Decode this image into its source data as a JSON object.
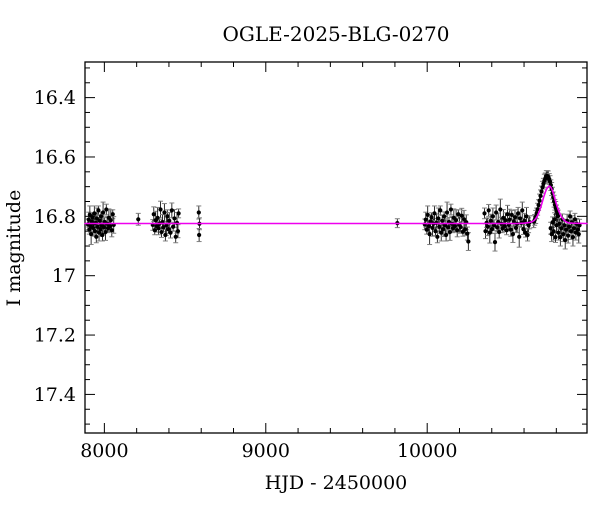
{
  "chart_data": {
    "type": "scatter",
    "title": "OGLE-2025-BLG-0270",
    "xlabel": "HJD - 2450000",
    "ylabel": "I magnitude",
    "x_range": [
      7880,
      10990
    ],
    "y_range_mag": [
      16.28,
      17.53
    ],
    "y_axis_inverted_magnitude": true,
    "grid": false,
    "legend": "none",
    "baseline_mag": 16.824,
    "peak": {
      "hjd": 10758,
      "mag": 16.7
    },
    "x_ticks": {
      "major": [
        8000,
        9000,
        10000
      ],
      "major_labels": [
        "8000",
        "9000",
        "10000"
      ],
      "minor": [
        8200,
        8400,
        8600,
        8800,
        9200,
        9400,
        9600,
        9800,
        10200,
        10400,
        10600,
        10800
      ]
    },
    "y_ticks": {
      "major": [
        16.4,
        16.6,
        16.8,
        17.0,
        17.2,
        17.4
      ],
      "major_labels": [
        "16.4",
        "16.6",
        "16.8",
        "17",
        "17.2",
        "17.4"
      ],
      "minor": [
        16.3,
        16.35,
        16.45,
        16.5,
        16.55,
        16.65,
        16.7,
        16.75,
        16.85,
        16.9,
        16.95,
        17.05,
        17.1,
        17.15,
        17.25,
        17.3,
        17.35,
        17.45,
        17.5
      ]
    },
    "colors": {
      "frame": "#000000",
      "points": "#000000",
      "error_bars": "#1a1a1a",
      "error_caps": "#808080",
      "model_line": "#ee00ee",
      "background": "#ffffff"
    },
    "model_curve": [
      [
        7880,
        16.824
      ],
      [
        9000,
        16.824
      ],
      [
        10000,
        16.824
      ],
      [
        10560,
        16.824
      ],
      [
        10600,
        16.823
      ],
      [
        10630,
        16.821
      ],
      [
        10650,
        16.818
      ],
      [
        10662,
        16.814
      ],
      [
        10672,
        16.808
      ],
      [
        10682,
        16.799
      ],
      [
        10692,
        16.787
      ],
      [
        10702,
        16.772
      ],
      [
        10712,
        16.754
      ],
      [
        10722,
        16.735
      ],
      [
        10732,
        16.718
      ],
      [
        10740,
        16.708
      ],
      [
        10747,
        16.702
      ],
      [
        10753,
        16.699
      ],
      [
        10758,
        16.698
      ],
      [
        10763,
        16.7
      ],
      [
        10769,
        16.705
      ],
      [
        10776,
        16.714
      ],
      [
        10784,
        16.727
      ],
      [
        10792,
        16.742
      ],
      [
        10800,
        16.757
      ],
      [
        10808,
        16.771
      ],
      [
        10816,
        16.783
      ],
      [
        10824,
        16.793
      ],
      [
        10832,
        16.802
      ],
      [
        10840,
        16.808
      ],
      [
        10848,
        16.813
      ],
      [
        10856,
        16.817
      ],
      [
        10866,
        16.82
      ],
      [
        10878,
        16.822
      ],
      [
        10900,
        16.823
      ],
      [
        10990,
        16.824
      ]
    ],
    "points": [
      [
        7898,
        16.827,
        0.018
      ],
      [
        7903,
        16.811,
        0.025
      ],
      [
        7907,
        16.845,
        0.015
      ],
      [
        7910,
        16.795,
        0.03
      ],
      [
        7914,
        16.833,
        0.02
      ],
      [
        7918,
        16.86,
        0.035
      ],
      [
        7922,
        16.817,
        0.022
      ],
      [
        7926,
        16.803,
        0.015
      ],
      [
        7930,
        16.839,
        0.028
      ],
      [
        7934,
        16.825,
        0.018
      ],
      [
        7938,
        16.79,
        0.025
      ],
      [
        7942,
        16.85,
        0.015
      ],
      [
        7946,
        16.822,
        0.03
      ],
      [
        7950,
        16.869,
        0.02
      ],
      [
        7954,
        16.807,
        0.035
      ],
      [
        7958,
        16.835,
        0.022
      ],
      [
        7963,
        16.78,
        0.015
      ],
      [
        7967,
        16.855,
        0.028
      ],
      [
        7971,
        16.815,
        0.018
      ],
      [
        7975,
        16.843,
        0.025
      ],
      [
        7979,
        16.8,
        0.015
      ],
      [
        7984,
        16.83,
        0.03
      ],
      [
        7988,
        16.863,
        0.02
      ],
      [
        7992,
        16.787,
        0.035
      ],
      [
        7997,
        16.837,
        0.022
      ],
      [
        8002,
        16.819,
        0.015
      ],
      [
        8007,
        16.853,
        0.028
      ],
      [
        8012,
        16.777,
        0.018
      ],
      [
        8017,
        16.825,
        0.025
      ],
      [
        8022,
        16.84,
        0.015
      ],
      [
        8028,
        16.805,
        0.03
      ],
      [
        8034,
        16.833,
        0.02
      ],
      [
        8040,
        16.813,
        0.035
      ],
      [
        8046,
        16.847,
        0.022
      ],
      [
        8052,
        16.793,
        0.015
      ],
      [
        8058,
        16.829,
        0.028
      ],
      [
        8210,
        16.81,
        0.02
      ],
      [
        8300,
        16.829,
        0.018
      ],
      [
        8306,
        16.793,
        0.025
      ],
      [
        8312,
        16.847,
        0.015
      ],
      [
        8318,
        16.813,
        0.03
      ],
      [
        8324,
        16.833,
        0.02
      ],
      [
        8330,
        16.805,
        0.035
      ],
      [
        8336,
        16.84,
        0.022
      ],
      [
        8342,
        16.825,
        0.015
      ],
      [
        8348,
        16.777,
        0.028
      ],
      [
        8354,
        16.853,
        0.018
      ],
      [
        8360,
        16.819,
        0.025
      ],
      [
        8366,
        16.837,
        0.015
      ],
      [
        8372,
        16.787,
        0.03
      ],
      [
        8378,
        16.863,
        0.02
      ],
      [
        8384,
        16.83,
        0.035
      ],
      [
        8390,
        16.8,
        0.022
      ],
      [
        8396,
        16.843,
        0.015
      ],
      [
        8402,
        16.815,
        0.028
      ],
      [
        8410,
        16.855,
        0.018
      ],
      [
        8418,
        16.78,
        0.025
      ],
      [
        8426,
        16.835,
        0.015
      ],
      [
        8434,
        16.807,
        0.03
      ],
      [
        8442,
        16.869,
        0.02
      ],
      [
        8450,
        16.822,
        0.035
      ],
      [
        8456,
        16.85,
        0.022
      ],
      [
        8460,
        16.79,
        0.015
      ],
      [
        8585,
        16.787,
        0.022
      ],
      [
        8589,
        16.825,
        0.02
      ],
      [
        8587,
        16.863,
        0.022
      ],
      [
        9815,
        16.823,
        0.015
      ],
      [
        9985,
        16.827,
        0.018
      ],
      [
        9991,
        16.811,
        0.025
      ],
      [
        9997,
        16.845,
        0.015
      ],
      [
        10003,
        16.795,
        0.03
      ],
      [
        10009,
        16.833,
        0.02
      ],
      [
        10015,
        16.86,
        0.035
      ],
      [
        10021,
        16.817,
        0.022
      ],
      [
        10027,
        16.803,
        0.015
      ],
      [
        10033,
        16.839,
        0.028
      ],
      [
        10039,
        16.825,
        0.018
      ],
      [
        10045,
        16.79,
        0.025
      ],
      [
        10051,
        16.85,
        0.015
      ],
      [
        10057,
        16.822,
        0.03
      ],
      [
        10063,
        16.869,
        0.02
      ],
      [
        10069,
        16.807,
        0.035
      ],
      [
        10075,
        16.835,
        0.022
      ],
      [
        10081,
        16.78,
        0.015
      ],
      [
        10087,
        16.855,
        0.028
      ],
      [
        10093,
        16.815,
        0.018
      ],
      [
        10099,
        16.843,
        0.025
      ],
      [
        10105,
        16.8,
        0.015
      ],
      [
        10111,
        16.83,
        0.03
      ],
      [
        10117,
        16.863,
        0.02
      ],
      [
        10123,
        16.787,
        0.035
      ],
      [
        10129,
        16.837,
        0.022
      ],
      [
        10135,
        16.819,
        0.015
      ],
      [
        10141,
        16.853,
        0.028
      ],
      [
        10147,
        16.777,
        0.018
      ],
      [
        10153,
        16.825,
        0.025
      ],
      [
        10159,
        16.84,
        0.015
      ],
      [
        10165,
        16.805,
        0.03
      ],
      [
        10172,
        16.833,
        0.02
      ],
      [
        10179,
        16.813,
        0.035
      ],
      [
        10186,
        16.847,
        0.022
      ],
      [
        10193,
        16.793,
        0.015
      ],
      [
        10200,
        16.829,
        0.028
      ],
      [
        10207,
        16.836,
        0.018
      ],
      [
        10214,
        16.798,
        0.025
      ],
      [
        10221,
        16.852,
        0.015
      ],
      [
        10228,
        16.81,
        0.03
      ],
      [
        10235,
        16.844,
        0.02
      ],
      [
        10242,
        16.82,
        0.025
      ],
      [
        10249,
        16.858,
        0.022
      ],
      [
        10255,
        16.885,
        0.03
      ],
      [
        10355,
        16.79,
        0.018
      ],
      [
        10361,
        16.85,
        0.025
      ],
      [
        10368,
        16.822,
        0.015
      ],
      [
        10375,
        16.835,
        0.03
      ],
      [
        10381,
        16.78,
        0.02
      ],
      [
        10388,
        16.855,
        0.035
      ],
      [
        10394,
        16.815,
        0.022
      ],
      [
        10401,
        16.843,
        0.015
      ],
      [
        10407,
        16.8,
        0.028
      ],
      [
        10414,
        16.83,
        0.018
      ],
      [
        10420,
        16.887,
        0.03
      ],
      [
        10427,
        16.787,
        0.025
      ],
      [
        10433,
        16.837,
        0.015
      ],
      [
        10440,
        16.819,
        0.03
      ],
      [
        10446,
        16.853,
        0.02
      ],
      [
        10453,
        16.777,
        0.035
      ],
      [
        10459,
        16.825,
        0.022
      ],
      [
        10466,
        16.84,
        0.015
      ],
      [
        10472,
        16.805,
        0.028
      ],
      [
        10479,
        16.833,
        0.018
      ],
      [
        10485,
        16.813,
        0.025
      ],
      [
        10492,
        16.847,
        0.015
      ],
      [
        10498,
        16.793,
        0.03
      ],
      [
        10505,
        16.829,
        0.02
      ],
      [
        10511,
        16.811,
        0.035
      ],
      [
        10518,
        16.845,
        0.022
      ],
      [
        10524,
        16.795,
        0.015
      ],
      [
        10531,
        16.86,
        0.028
      ],
      [
        10537,
        16.817,
        0.018
      ],
      [
        10544,
        16.803,
        0.025
      ],
      [
        10550,
        16.839,
        0.015
      ],
      [
        10557,
        16.825,
        0.03
      ],
      [
        10563,
        16.79,
        0.02
      ],
      [
        10570,
        16.869,
        0.035
      ],
      [
        10576,
        16.807,
        0.022
      ],
      [
        10583,
        16.822,
        0.015
      ],
      [
        10589,
        16.78,
        0.028
      ],
      [
        10596,
        16.843,
        0.018
      ],
      [
        10602,
        16.815,
        0.025
      ],
      [
        10609,
        16.855,
        0.015
      ],
      [
        10615,
        16.8,
        0.03
      ],
      [
        10622,
        16.863,
        0.02
      ],
      [
        10628,
        16.83,
        0.025
      ],
      [
        10635,
        16.82,
        0.022
      ],
      [
        10660,
        16.818,
        0.02
      ],
      [
        10666,
        16.812,
        0.018
      ],
      [
        10672,
        16.802,
        0.022
      ],
      [
        10678,
        16.79,
        0.018
      ],
      [
        10684,
        16.776,
        0.02
      ],
      [
        10690,
        16.762,
        0.018
      ],
      [
        10696,
        16.747,
        0.022
      ],
      [
        10702,
        16.731,
        0.02
      ],
      [
        10708,
        16.716,
        0.018
      ],
      [
        10714,
        16.702,
        0.02
      ],
      [
        10720,
        16.69,
        0.018
      ],
      [
        10726,
        16.68,
        0.022
      ],
      [
        10732,
        16.672,
        0.018
      ],
      [
        10738,
        16.666,
        0.02
      ],
      [
        10744,
        16.664,
        0.018
      ],
      [
        10750,
        16.667,
        0.02
      ],
      [
        10756,
        16.674,
        0.018
      ],
      [
        10761,
        16.683,
        0.02
      ],
      [
        10766,
        16.695,
        0.018
      ],
      [
        10771,
        16.708,
        0.022
      ],
      [
        10776,
        16.722,
        0.02
      ],
      [
        10781,
        16.736,
        0.018
      ],
      [
        10786,
        16.749,
        0.02
      ],
      [
        10791,
        16.761,
        0.018
      ],
      [
        10796,
        16.772,
        0.022
      ],
      [
        10801,
        16.782,
        0.02
      ],
      [
        10806,
        16.791,
        0.018
      ],
      [
        10811,
        16.799,
        0.02
      ],
      [
        10765,
        16.84,
        0.02
      ],
      [
        10771,
        16.86,
        0.025
      ],
      [
        10777,
        16.82,
        0.018
      ],
      [
        10783,
        16.85,
        0.03
      ],
      [
        10789,
        16.81,
        0.022
      ],
      [
        10795,
        16.87,
        0.018
      ],
      [
        10801,
        16.83,
        0.028
      ],
      [
        10807,
        16.8,
        0.02
      ],
      [
        10813,
        16.855,
        0.025
      ],
      [
        10819,
        16.825,
        0.018
      ],
      [
        10825,
        16.87,
        0.03
      ],
      [
        10831,
        16.84,
        0.022
      ],
      [
        10837,
        16.81,
        0.018
      ],
      [
        10843,
        16.86,
        0.025
      ],
      [
        10849,
        16.83,
        0.02
      ],
      [
        10855,
        16.88,
        0.03
      ],
      [
        10861,
        16.845,
        0.018
      ],
      [
        10867,
        16.815,
        0.022
      ],
      [
        10873,
        16.865,
        0.025
      ],
      [
        10879,
        16.835,
        0.02
      ],
      [
        10885,
        16.8,
        0.018
      ],
      [
        10891,
        16.85,
        0.028
      ],
      [
        10897,
        16.82,
        0.022
      ],
      [
        10903,
        16.87,
        0.03
      ],
      [
        10909,
        16.84,
        0.018
      ],
      [
        10915,
        16.81,
        0.02
      ],
      [
        10921,
        16.855,
        0.025
      ],
      [
        10927,
        16.825,
        0.018
      ],
      [
        10933,
        16.845,
        0.022
      ],
      [
        10939,
        16.86,
        0.03
      ],
      [
        10944,
        16.83,
        0.02
      ]
    ]
  }
}
